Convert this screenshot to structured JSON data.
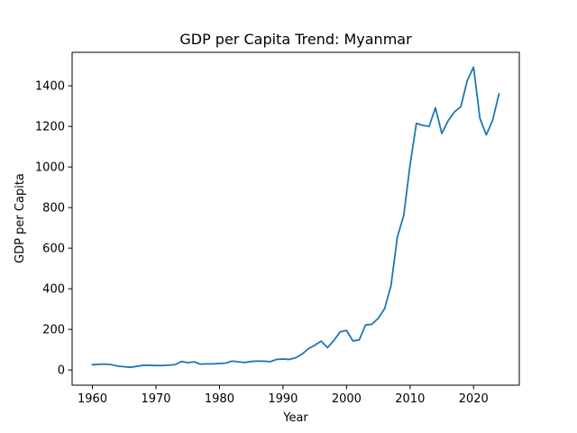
{
  "chart_data": {
    "type": "line",
    "title": "GDP per Capita Trend: Myanmar",
    "xlabel": "Year",
    "ylabel": "GDP per Capita",
    "xlim": [
      1956.8,
      2027.2
    ],
    "ylim": [
      -75,
      1565
    ],
    "x_ticks": [
      1960,
      1970,
      1980,
      1990,
      2000,
      2010,
      2020
    ],
    "y_ticks": [
      0,
      200,
      400,
      600,
      800,
      1000,
      1200,
      1400
    ],
    "grid": false,
    "line_color": "#1f77b4",
    "series": [
      {
        "x": [
          1960,
          1961,
          1962,
          1963,
          1964,
          1965,
          1966,
          1967,
          1968,
          1969,
          1970,
          1971,
          1972,
          1973,
          1974,
          1975,
          1976,
          1977,
          1978,
          1979,
          1980,
          1981,
          1982,
          1983,
          1984,
          1985,
          1986,
          1987,
          1988,
          1989,
          1990,
          1991,
          1992,
          1993,
          1994,
          1995,
          1996,
          1997,
          1998,
          1999,
          2000,
          2001,
          2002,
          2003,
          2004,
          2005,
          2006,
          2007,
          2008,
          2009,
          2010,
          2011,
          2012,
          2013,
          2014,
          2015,
          2016,
          2017,
          2018,
          2019,
          2020,
          2021,
          2022,
          2023,
          2024
        ],
        "values": [
          26,
          28,
          29,
          26,
          19,
          16,
          13,
          18,
          23,
          23,
          22,
          22,
          24,
          26,
          42,
          36,
          40,
          29,
          30,
          30,
          32,
          34,
          44,
          40,
          37,
          42,
          44,
          43,
          41,
          52,
          54,
          52,
          60,
          78,
          105,
          122,
          142,
          110,
          145,
          188,
          195,
          143,
          148,
          222,
          225,
          255,
          302,
          415,
          655,
          760,
          1010,
          1215,
          1205,
          1200,
          1292,
          1165,
          1228,
          1272,
          1298,
          1425,
          1492,
          1240,
          1158,
          1230,
          1360
        ]
      }
    ]
  }
}
